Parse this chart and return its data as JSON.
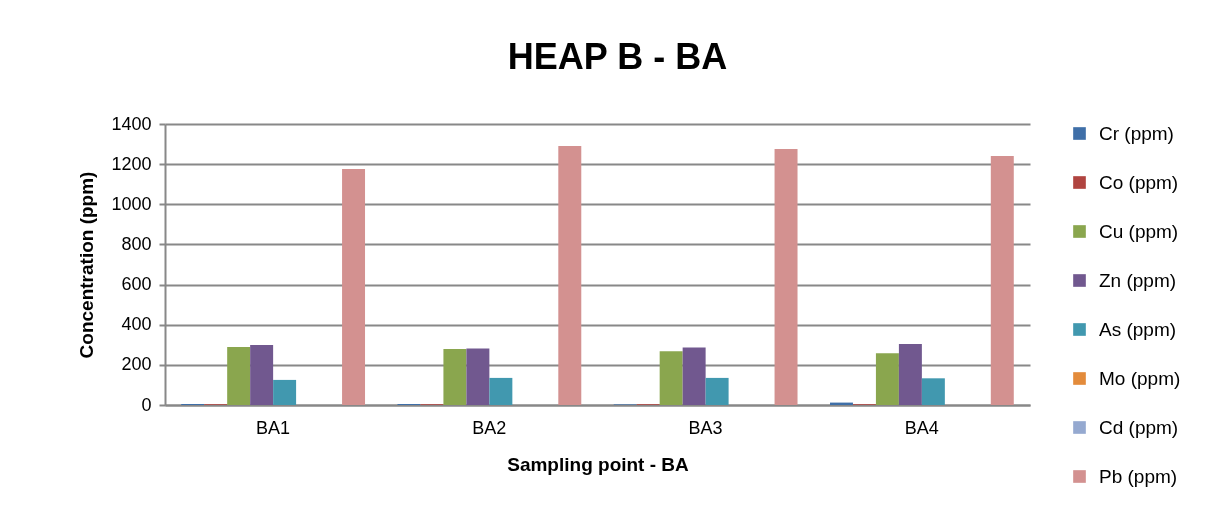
{
  "chart_data": {
    "type": "bar",
    "title": "HEAP B - BA",
    "xlabel": "Sampling point - BA",
    "ylabel": "Concentration (ppm)",
    "categories": [
      "BA1",
      "BA2",
      "BA3",
      "BA4"
    ],
    "series": [
      {
        "name": "Cr (ppm)",
        "color": "#3f6fa8",
        "values": [
          5,
          5,
          3,
          12
        ]
      },
      {
        "name": "Co (ppm)",
        "color": "#b04440",
        "values": [
          4,
          4,
          4,
          4
        ]
      },
      {
        "name": "Cu (ppm)",
        "color": "#8aa64e",
        "values": [
          289,
          279,
          268,
          258
        ]
      },
      {
        "name": "Zn (ppm)",
        "color": "#71588f",
        "values": [
          299,
          281,
          286,
          304
        ]
      },
      {
        "name": "As (ppm)",
        "color": "#4198af",
        "values": [
          125,
          135,
          135,
          133
        ]
      },
      {
        "name": "Mo (ppm)",
        "color": "#e38b3b",
        "values": [
          null,
          null,
          null,
          null
        ]
      },
      {
        "name": "Cd (ppm)",
        "color": "#95a9d0",
        "values": [
          null,
          null,
          null,
          null
        ]
      },
      {
        "name": "Pb (ppm)",
        "color": "#d39190",
        "values": [
          1176,
          1290,
          1275,
          1241
        ]
      }
    ],
    "ylim": [
      0,
      1400
    ],
    "yticks": [
      0,
      200,
      400,
      600,
      800,
      1000,
      1200,
      1400
    ],
    "grid": "y",
    "legend": "right"
  }
}
